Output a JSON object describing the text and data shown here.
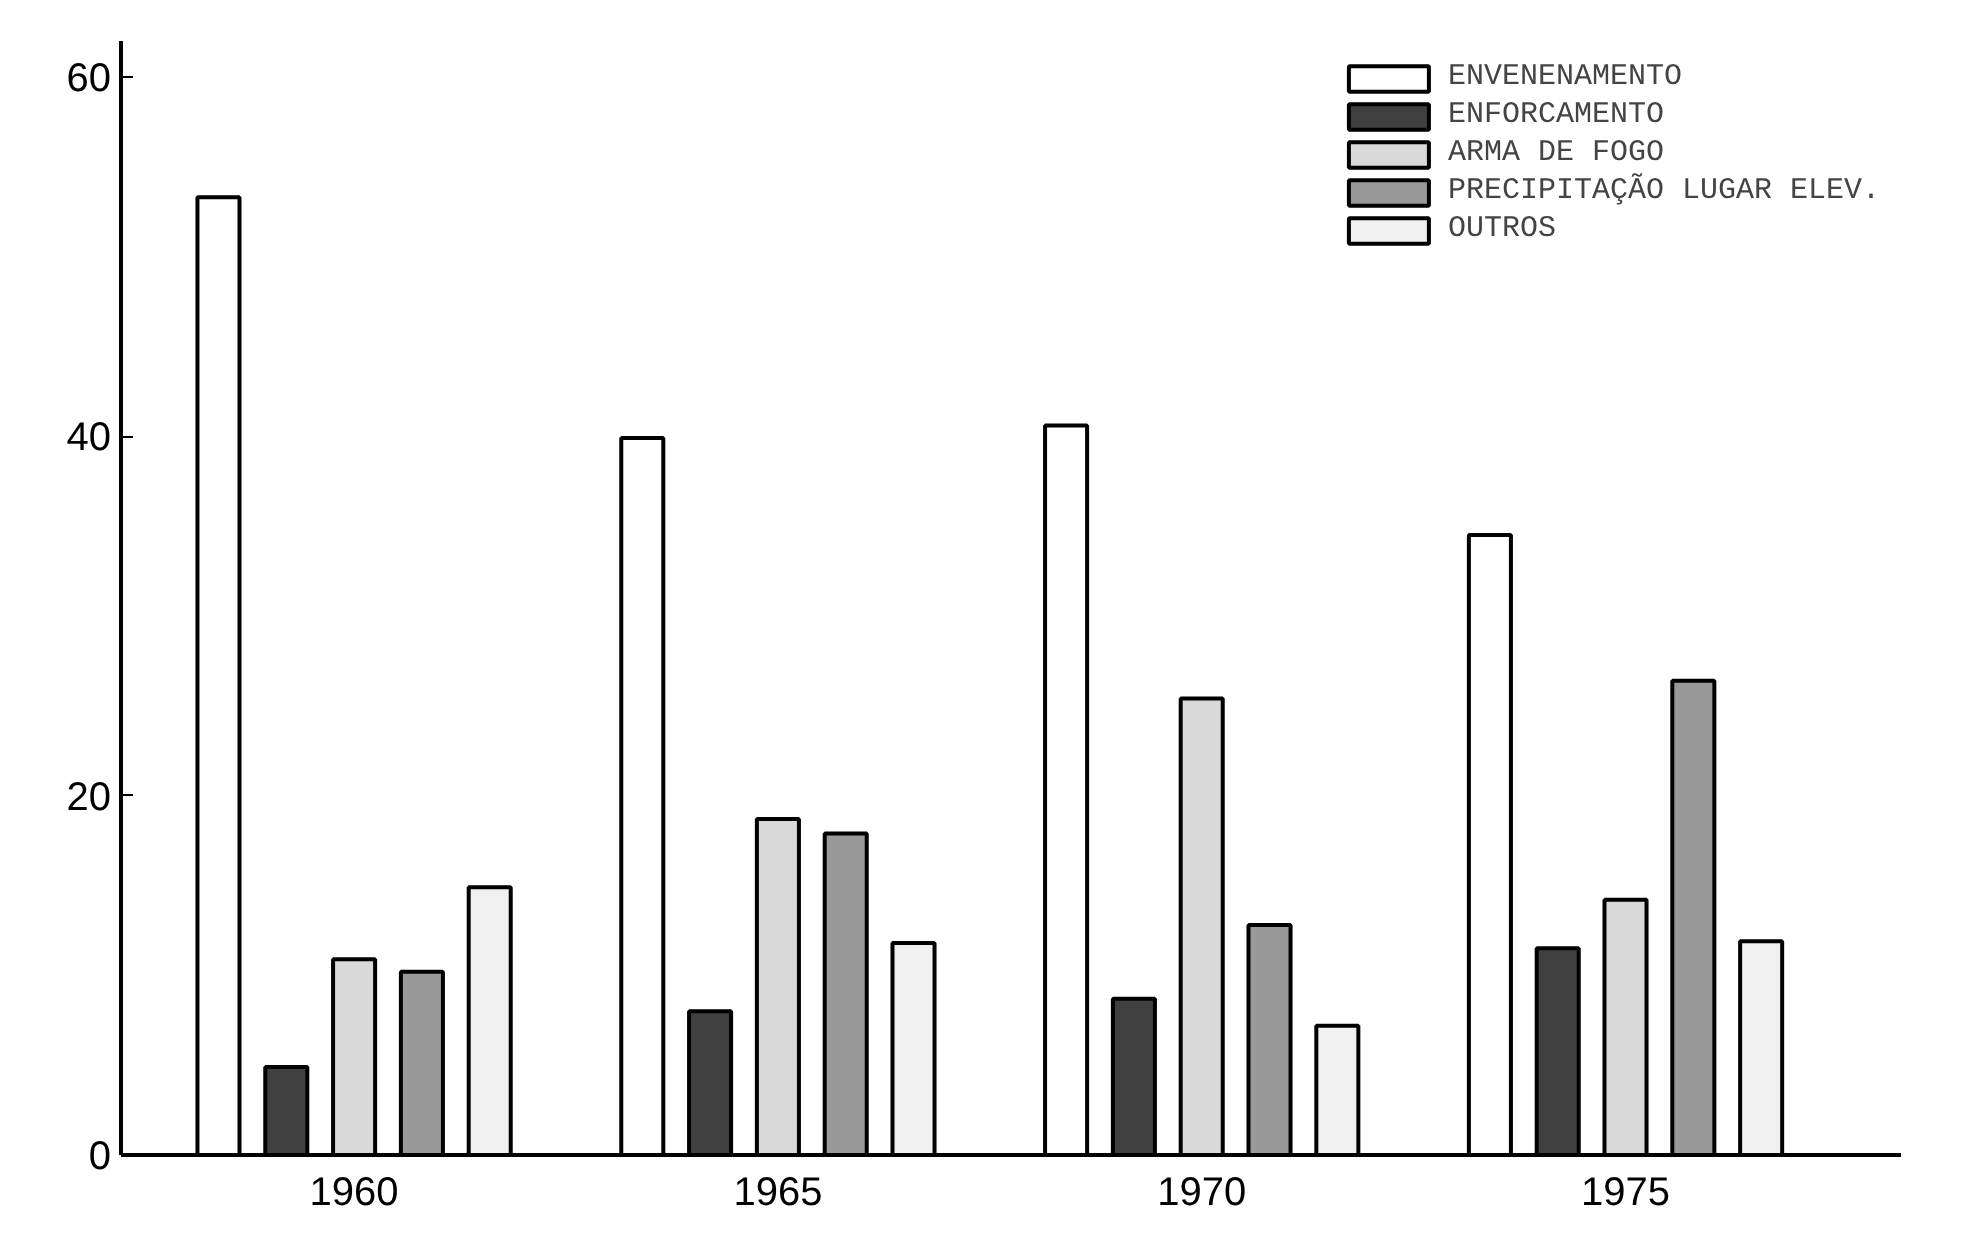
{
  "chart_data": {
    "type": "bar",
    "categories": [
      "1960",
      "1965",
      "1970",
      "1975"
    ],
    "series": [
      {
        "name": "ENVENENAMENTO",
        "color": "#ffffff",
        "values": [
          53.3,
          39.9,
          40.6,
          34.5
        ]
      },
      {
        "name": "ENFORCAMENTO",
        "color": "#404040",
        "values": [
          4.9,
          8.0,
          8.7,
          11.5
        ]
      },
      {
        "name": "ARMA DE FOGO",
        "color": "#d9d9d9",
        "values": [
          10.9,
          18.7,
          25.4,
          14.2
        ]
      },
      {
        "name": "PRECIPITAÇÃO LUGAR ELEV.",
        "color": "#999999",
        "values": [
          10.2,
          17.9,
          12.8,
          26.4
        ]
      },
      {
        "name": "OUTROS",
        "color": "#f0f0f0",
        "values": [
          14.9,
          11.8,
          7.2,
          11.9
        ]
      }
    ],
    "ylim": [
      0,
      62
    ],
    "yticks": [
      0,
      20,
      40,
      60
    ],
    "grid": false,
    "legend": "top right"
  }
}
